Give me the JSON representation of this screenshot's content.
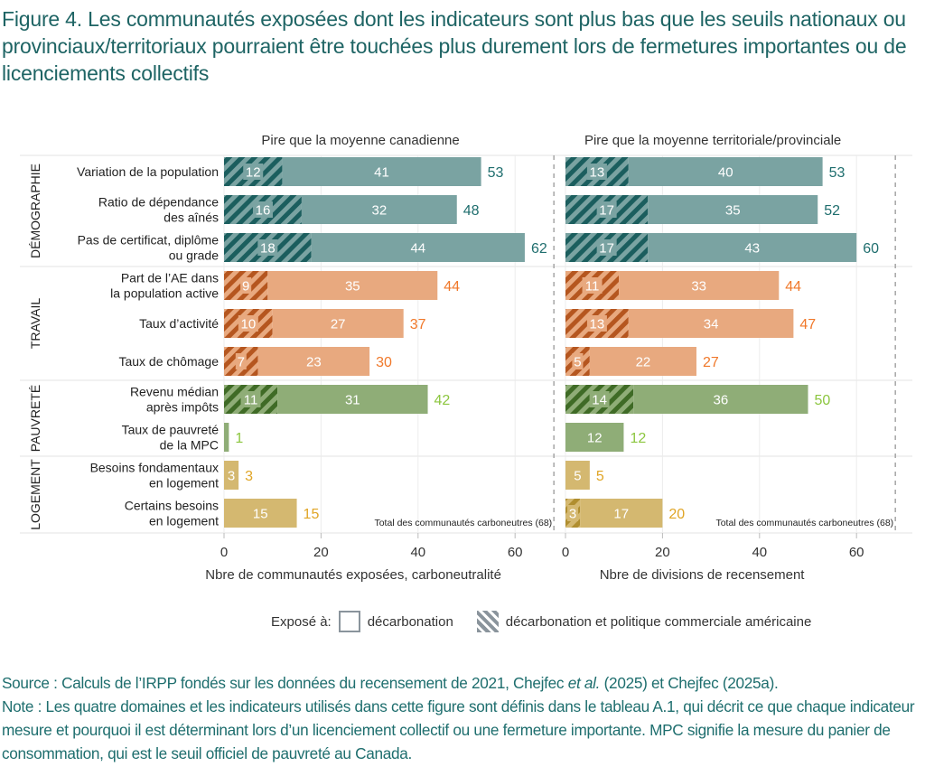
{
  "title": "Figure 4. Les communautés exposées dont les indicateurs sont plus bas que les seuils nationaux ou provinciaux/territoriaux pourraient être touchées plus durement lors de fermetures importantes ou de licenciements collectifs",
  "colors": {
    "demographie": {
      "solid": "#7aa3a2",
      "hatch": "#1b5e5e",
      "label": "#1f6e6e"
    },
    "travail": {
      "solid": "#e8a97f",
      "hatch": "#b5561f",
      "label": "#f0782a"
    },
    "pauvrete": {
      "solid": "#8fad77",
      "hatch": "#3f6b26",
      "label": "#8cc63f"
    },
    "logement": {
      "solid": "#d4b870",
      "hatch": "#b08e2f",
      "label": "#e0a526"
    }
  },
  "chart_data": {
    "type": "bar",
    "stacked": true,
    "orientation": "horizontal",
    "title": "Figure 4. Les communautés exposées dont les indicateurs sont plus bas que les seuils nationaux ou provinciaux/territoriaux pourraient être touchées plus durement lors de fermetures importantes ou de licenciements collectifs",
    "groups": [
      {
        "name": "DÉMOGRAPHIE",
        "key": "demographie",
        "indicators": [
          "Variation de la population",
          "Ratio de dépendance des aînés",
          "Pas de certificat, diplôme ou grade"
        ]
      },
      {
        "name": "TRAVAIL",
        "key": "travail",
        "indicators": [
          "Part de l’AE dans la population active",
          "Taux d’activité",
          "Taux de chômage"
        ]
      },
      {
        "name": "PAUVRETÉ",
        "key": "pauvrete",
        "indicators": [
          "Revenu médian après impôts",
          "Taux de pauvreté de la MPC"
        ]
      },
      {
        "name": "LOGEMENT",
        "key": "logement",
        "indicators": [
          "Besoins fondamentaux en logement",
          "Certains besoins en logement"
        ]
      }
    ],
    "categories": [
      {
        "label_lines": [
          "Variation de la population"
        ],
        "group": "demographie"
      },
      {
        "label_lines": [
          "Ratio de dépendance",
          "des aînés"
        ],
        "group": "demographie"
      },
      {
        "label_lines": [
          "Pas de certificat, diplôme",
          "ou grade"
        ],
        "group": "demographie"
      },
      {
        "label_lines": [
          "Part de l’AE dans",
          "la population active"
        ],
        "group": "travail"
      },
      {
        "label_lines": [
          "Taux d’activité"
        ],
        "group": "travail"
      },
      {
        "label_lines": [
          "Taux de chômage"
        ],
        "group": "travail"
      },
      {
        "label_lines": [
          "Revenu médian",
          "après impôts"
        ],
        "group": "pauvrete"
      },
      {
        "label_lines": [
          "Taux de pauvreté",
          "de la MPC"
        ],
        "group": "pauvrete"
      },
      {
        "label_lines": [
          "Besoins fondamentaux",
          "en logement"
        ],
        "group": "logement"
      },
      {
        "label_lines": [
          "Certains besoins",
          "en logement"
        ],
        "group": "logement"
      }
    ],
    "panels": [
      {
        "title": "Pire que la moyenne canadienne",
        "xlabel": "Nbre de communautés exposées, carboneutralité",
        "xlim": [
          0,
          68
        ],
        "xticks": [
          0,
          20,
          40,
          60
        ],
        "reference_line": {
          "value": 68,
          "label": "Total des communautés carboneutres (68)"
        },
        "series": [
          {
            "name": "décarbonation et politique commerciale américaine",
            "pattern": "hatched",
            "values": [
              12,
              16,
              18,
              9,
              10,
              7,
              11,
              0,
              0,
              0
            ]
          },
          {
            "name": "décarbonation",
            "pattern": "solid",
            "values": [
              41,
              32,
              44,
              35,
              27,
              23,
              31,
              1,
              3,
              15
            ]
          }
        ],
        "totals": [
          53,
          48,
          62,
          44,
          37,
          30,
          42,
          1,
          3,
          15
        ]
      },
      {
        "title": "Pire que la moyenne territoriale/provinciale",
        "xlabel": "Nbre de divisions de recensement",
        "xlim": [
          0,
          68
        ],
        "xticks": [
          0,
          20,
          40,
          60
        ],
        "reference_line": {
          "value": 68,
          "label": "Total des communautés carboneutres (68)"
        },
        "series": [
          {
            "name": "décarbonation et politique commerciale américaine",
            "pattern": "hatched",
            "values": [
              13,
              17,
              17,
              11,
              13,
              5,
              14,
              0,
              0,
              3
            ]
          },
          {
            "name": "décarbonation",
            "pattern": "solid",
            "values": [
              40,
              35,
              43,
              33,
              34,
              22,
              36,
              12,
              5,
              17
            ]
          }
        ],
        "totals": [
          53,
          52,
          60,
          44,
          47,
          27,
          50,
          12,
          5,
          20
        ]
      }
    ],
    "legend": {
      "title": "Exposé à:",
      "position": "bottom",
      "entries": [
        {
          "label": "décarbonation",
          "pattern": "solid"
        },
        {
          "label": "décarbonation et politique commerciale américaine",
          "pattern": "hatched"
        }
      ]
    }
  },
  "notes": {
    "source_prefix": "Source : Calculs de l’IRPP fondés sur les données du recensement de 2021, Chejfec ",
    "source_italic": "et al.",
    "source_suffix": " (2025) et Chejfec (2025a).",
    "note": "Note : Les quatre domaines et les indicateurs utilisés dans cette figure sont définis dans le tableau A.1, qui décrit ce que chaque indicateur mesure et pourquoi il est déterminant lors d’un licenciement collectif ou une fermeture importante. MPC signifie la mesure du panier de consommation, qui est le seuil officiel de pauvreté au Canada."
  }
}
